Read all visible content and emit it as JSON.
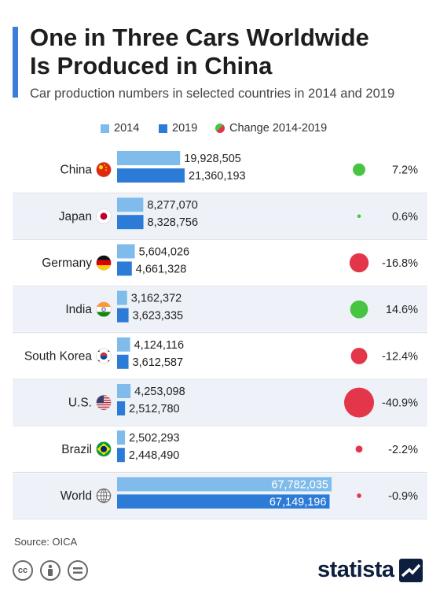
{
  "header": {
    "title_line1": "One in Three Cars Worldwide",
    "title_line2": "Is Produced in China",
    "subtitle": "Car production numbers in selected countries in 2014 and 2019"
  },
  "legend": {
    "item_2014": "2014",
    "item_2019": "2019",
    "item_change": "Change 2014-2019"
  },
  "colors": {
    "bar_2014": "#7fbcec",
    "bar_2019": "#2c7bd6",
    "positive": "#46c442",
    "negative": "#e3364a",
    "row_shade": "#eef2f8"
  },
  "chart_data": {
    "type": "bar",
    "categories": [
      "China",
      "Japan",
      "Germany",
      "India",
      "South Korea",
      "U.S.",
      "Brazil",
      "World"
    ],
    "series": [
      {
        "name": "2014",
        "values": [
          19928505,
          8277070,
          5604026,
          3162372,
          4124116,
          4253098,
          2502293,
          67782035
        ]
      },
      {
        "name": "2019",
        "values": [
          21360193,
          8328756,
          4661328,
          3623335,
          3612587,
          2512780,
          2448490,
          67149196
        ]
      }
    ],
    "value_labels_2014": [
      "19,928,505",
      "8,277,070",
      "5,604,026",
      "3,162,372",
      "4,124,116",
      "4,253,098",
      "2,502,293",
      "67,782,035"
    ],
    "value_labels_2019": [
      "21,360,193",
      "8,328,756",
      "4,661,328",
      "3,623,335",
      "3,612,587",
      "2,512,780",
      "2,448,490",
      "67,149,196"
    ],
    "change_percent": [
      7.2,
      0.6,
      -16.8,
      14.6,
      -12.4,
      -40.9,
      -2.2,
      -0.9
    ],
    "change_labels": [
      "7.2%",
      "0.6%",
      "-16.8%",
      "14.6%",
      "-12.4%",
      "-40.9%",
      "-2.2%",
      "-0.9%"
    ],
    "flags": [
      "china-flag",
      "japan-flag",
      "germany-flag",
      "india-flag",
      "south-korea-flag",
      "us-flag",
      "brazil-flag",
      "globe-icon"
    ],
    "legend_position": "top"
  },
  "footer": {
    "source": "Source: OICA",
    "license_icons": [
      "cc-icon",
      "attribution-icon",
      "no-derivatives-icon"
    ],
    "brand": "statista"
  }
}
